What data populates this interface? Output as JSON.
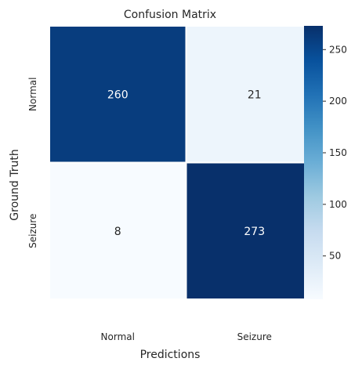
{
  "chart_data": {
    "type": "heatmap",
    "title": "Confusion Matrix",
    "xlabel": "Predictions",
    "ylabel": "Ground Truth",
    "x_categories": [
      "Normal",
      "Seizure"
    ],
    "y_categories": [
      "Normal",
      "Seizure"
    ],
    "values": [
      [
        260,
        21
      ],
      [
        8,
        273
      ]
    ],
    "colormap": "Blues",
    "colorbar": {
      "vmin": 8,
      "vmax": 273,
      "ticks": [
        50,
        100,
        150,
        200,
        250
      ]
    },
    "text_colors": {
      "light": "#ffffff",
      "dark": "#262626"
    },
    "cell_separator_color": "#ffffff"
  }
}
